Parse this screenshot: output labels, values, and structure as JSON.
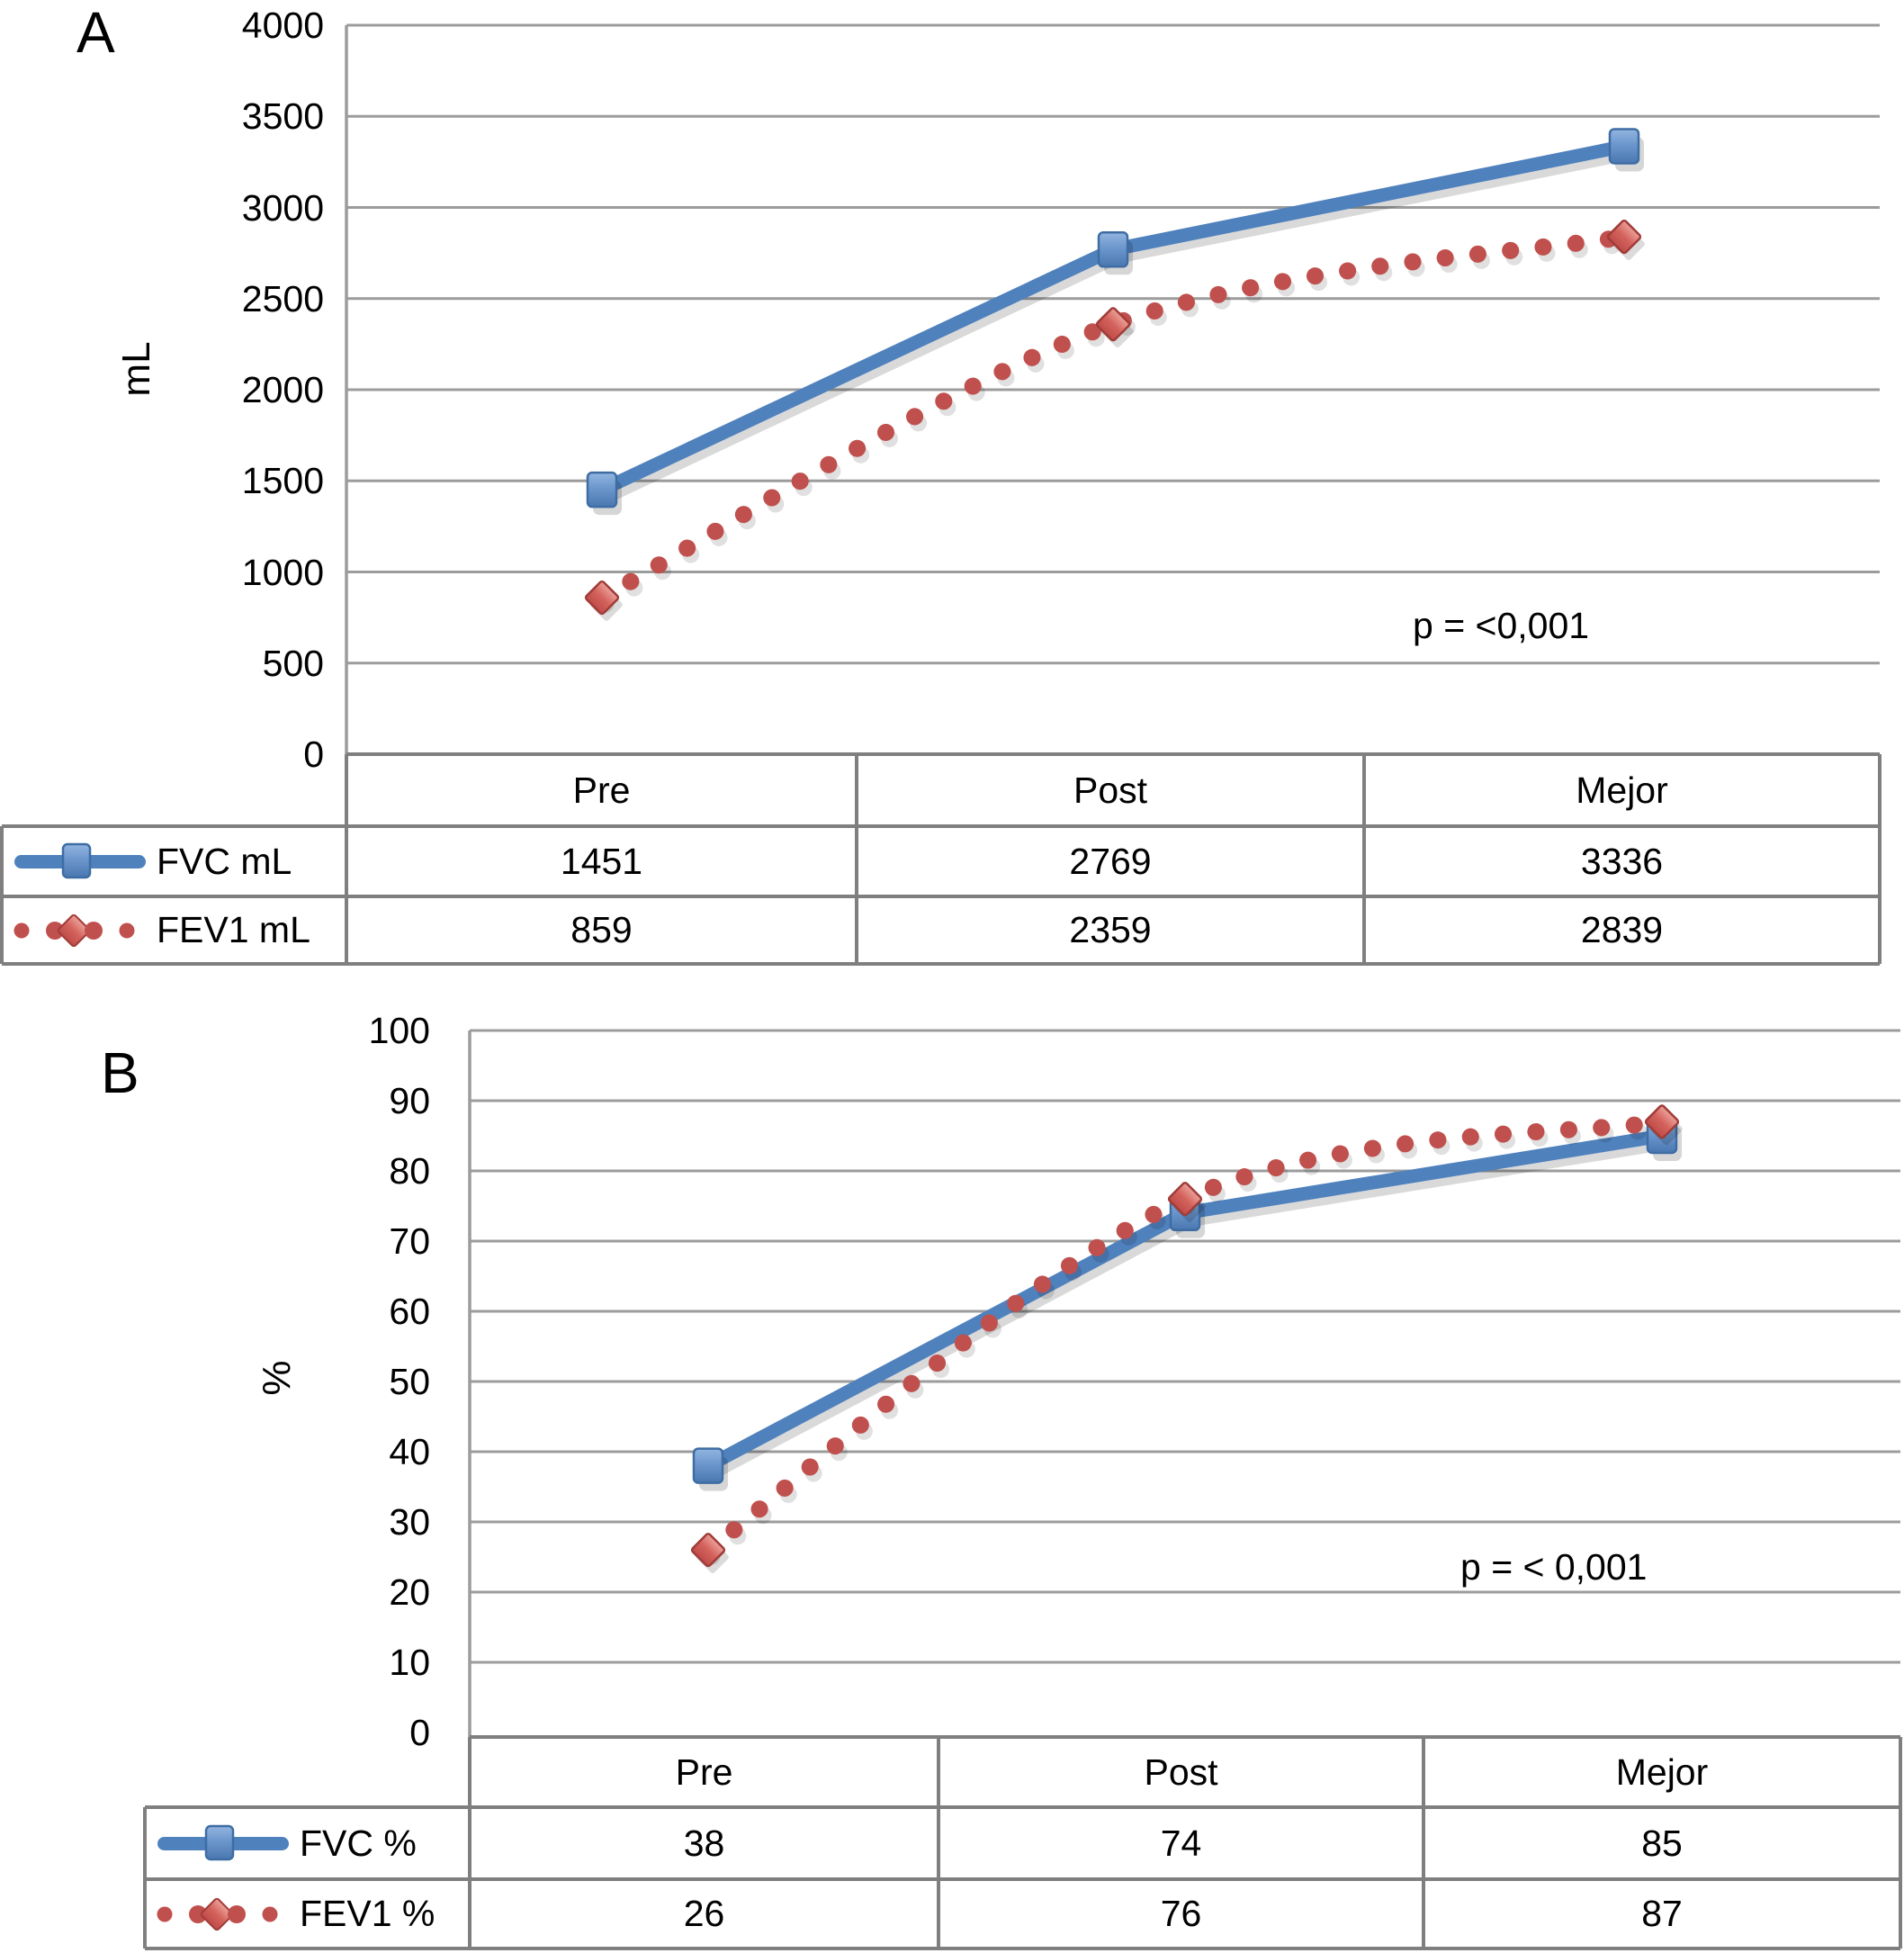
{
  "chart_data": [
    {
      "type": "line",
      "panel_label": "A",
      "ylabel": "mL",
      "categories": [
        "Pre",
        "Post",
        "Mejor"
      ],
      "series": [
        {
          "name": "FVC mL",
          "values": [
            1451,
            2769,
            3336
          ],
          "color": "#4F81BD",
          "line_style": "solid",
          "marker": "square"
        },
        {
          "name": "FEV1 mL",
          "values": [
            859,
            2359,
            2839
          ],
          "color": "#C0504D",
          "line_style": "dotted",
          "marker": "diamond"
        }
      ],
      "ylim": [
        0,
        4000
      ],
      "ytick_step": 500,
      "yticks": [
        "4000",
        "3500",
        "3000",
        "2500",
        "2000",
        "1500",
        "1000",
        "500",
        "0"
      ],
      "p_label": "p = <0,001",
      "grid": true,
      "legend_position": "table-left"
    },
    {
      "type": "line",
      "panel_label": "B",
      "ylabel": "%",
      "categories": [
        "Pre",
        "Post",
        "Mejor"
      ],
      "series": [
        {
          "name": "FVC %",
          "values": [
            38,
            74,
            85
          ],
          "color": "#4F81BD",
          "line_style": "solid",
          "marker": "square"
        },
        {
          "name": "FEV1 %",
          "values": [
            26,
            76,
            87
          ],
          "color": "#C0504D",
          "line_style": "dotted",
          "marker": "diamond"
        }
      ],
      "ylim": [
        0,
        100
      ],
      "ytick_step": 10,
      "yticks": [
        "100",
        "90",
        "80",
        "70",
        "60",
        "50",
        "40",
        "30",
        "20",
        "10",
        "0"
      ],
      "p_label": "p = < 0,001",
      "grid": true,
      "legend_position": "table-left"
    }
  ],
  "colors": {
    "fvc_blue": "#4F81BD",
    "fev1_red": "#C0504D",
    "gridline_gray": "#9C9C9C",
    "table_border_gray": "#7F7F7F"
  }
}
